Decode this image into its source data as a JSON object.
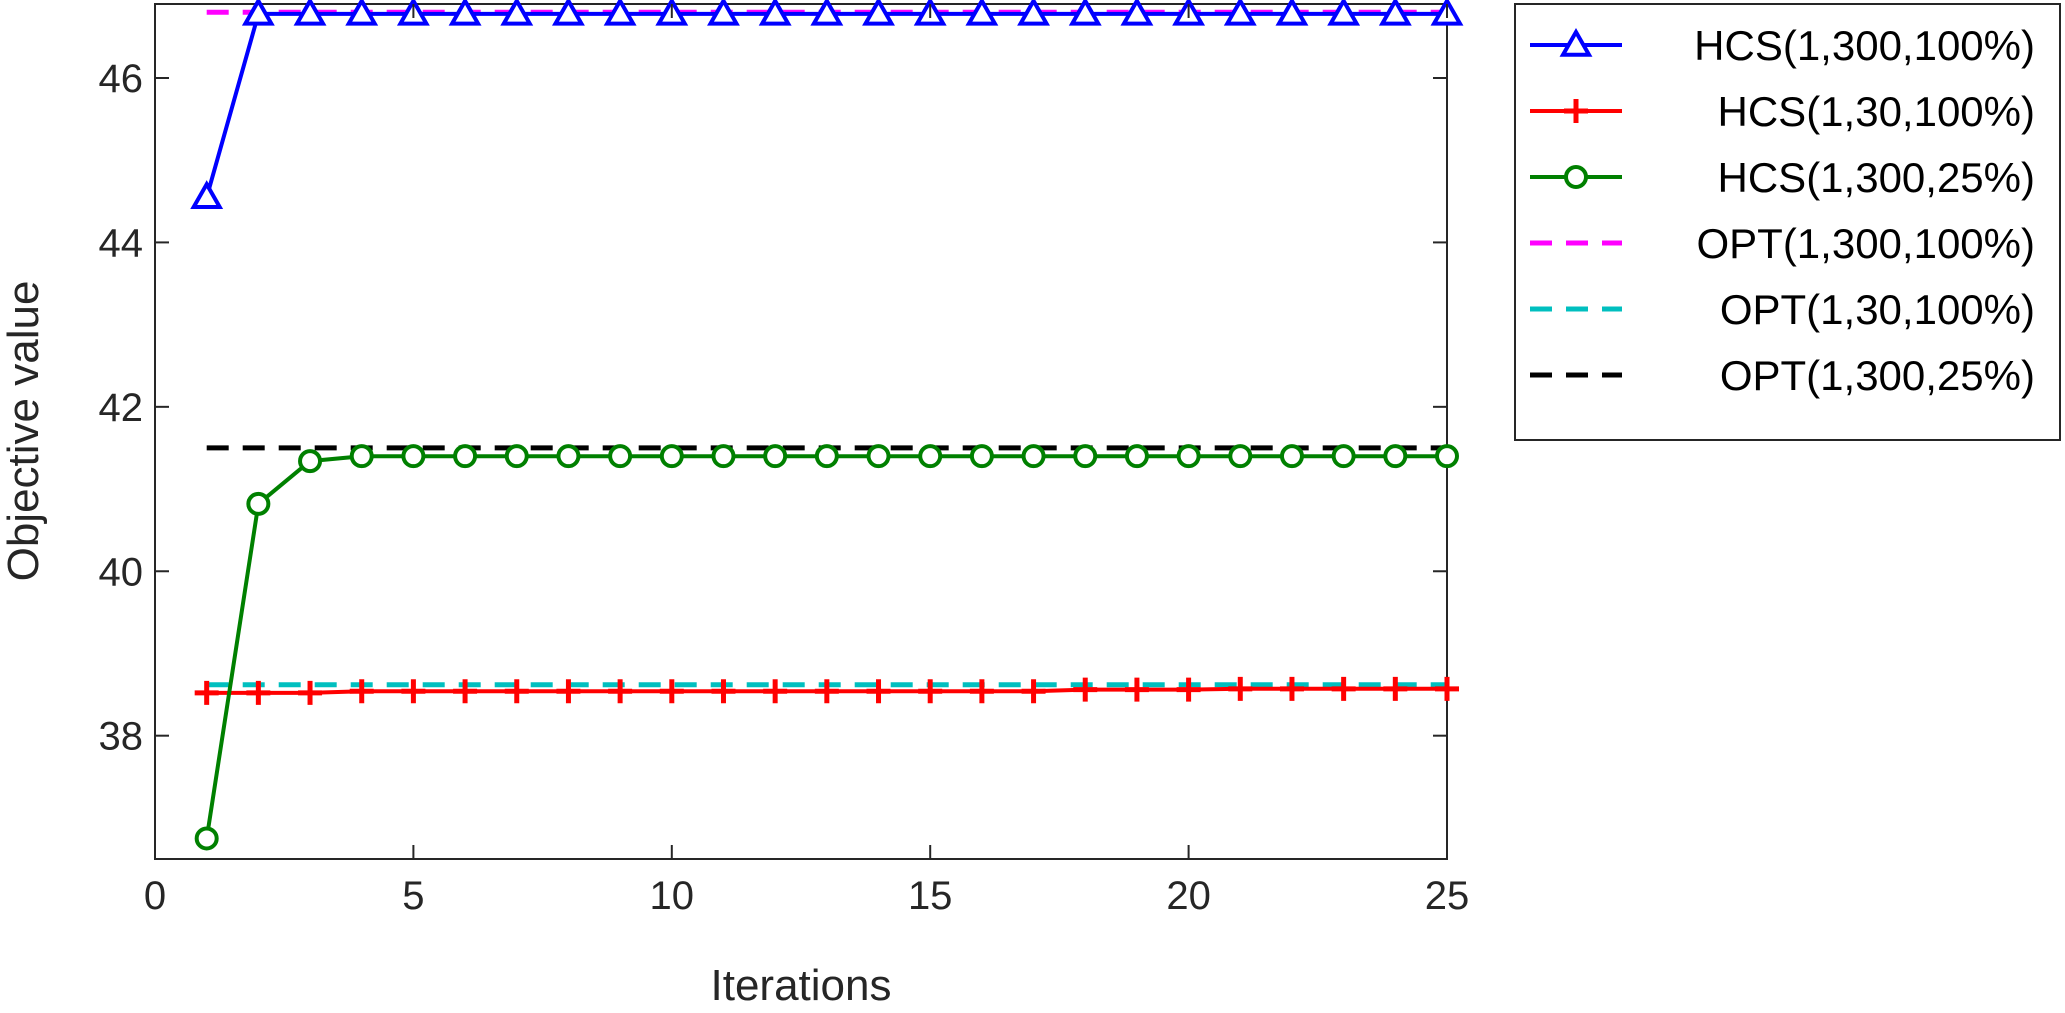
{
  "chart_data": {
    "type": "line",
    "title": "",
    "xlabel": "Iterations",
    "ylabel": "Objective value",
    "xlim": [
      0,
      25
    ],
    "ylim": [
      36.5,
      46.9
    ],
    "xticks": [
      0,
      5,
      10,
      15,
      20,
      25
    ],
    "yticks": [
      38,
      40,
      42,
      44,
      46
    ],
    "grid": false,
    "legend_position": "outside-right",
    "series": [
      {
        "name": "HCS(1,300,100%)",
        "color": "#0000ff",
        "line_style": "solid",
        "marker": "triangle",
        "x": [
          1,
          2,
          3,
          4,
          5,
          6,
          7,
          8,
          9,
          10,
          11,
          12,
          13,
          14,
          15,
          16,
          17,
          18,
          19,
          20,
          21,
          22,
          23,
          24,
          25
        ],
        "y": [
          44.55,
          46.78,
          46.78,
          46.78,
          46.78,
          46.78,
          46.78,
          46.78,
          46.78,
          46.78,
          46.78,
          46.78,
          46.78,
          46.78,
          46.78,
          46.78,
          46.78,
          46.78,
          46.78,
          46.78,
          46.78,
          46.78,
          46.78,
          46.78,
          46.78
        ]
      },
      {
        "name": "HCS(1,30,100%)",
        "color": "#ff0000",
        "line_style": "solid",
        "marker": "plus",
        "x": [
          1,
          2,
          3,
          4,
          5,
          6,
          7,
          8,
          9,
          10,
          11,
          12,
          13,
          14,
          15,
          16,
          17,
          18,
          19,
          20,
          21,
          22,
          23,
          24,
          25
        ],
        "y": [
          38.52,
          38.52,
          38.52,
          38.54,
          38.54,
          38.54,
          38.54,
          38.54,
          38.54,
          38.54,
          38.54,
          38.54,
          38.54,
          38.54,
          38.54,
          38.54,
          38.54,
          38.56,
          38.56,
          38.56,
          38.57,
          38.57,
          38.57,
          38.57,
          38.57
        ]
      },
      {
        "name": "HCS(1,300,25%)",
        "color": "#008000",
        "line_style": "solid",
        "marker": "circle",
        "x": [
          1,
          2,
          3,
          4,
          5,
          6,
          7,
          8,
          9,
          10,
          11,
          12,
          13,
          14,
          15,
          16,
          17,
          18,
          19,
          20,
          21,
          22,
          23,
          24,
          25
        ],
        "y": [
          36.75,
          40.82,
          41.34,
          41.4,
          41.4,
          41.4,
          41.4,
          41.4,
          41.4,
          41.4,
          41.4,
          41.4,
          41.4,
          41.4,
          41.4,
          41.4,
          41.4,
          41.4,
          41.4,
          41.4,
          41.4,
          41.4,
          41.4,
          41.4,
          41.4
        ]
      },
      {
        "name": "OPT(1,300,100%)",
        "color": "#ff00ff",
        "line_style": "dashed",
        "marker": "none",
        "x": [
          1,
          25
        ],
        "y": [
          46.8,
          46.8
        ]
      },
      {
        "name": "OPT(1,30,100%)",
        "color": "#00bfbf",
        "line_style": "dashed",
        "marker": "none",
        "x": [
          1,
          25
        ],
        "y": [
          38.62,
          38.62
        ]
      },
      {
        "name": "OPT(1,300,25%)",
        "color": "#000000",
        "line_style": "dashed",
        "marker": "none",
        "x": [
          1,
          25
        ],
        "y": [
          41.5,
          41.5
        ]
      }
    ]
  }
}
